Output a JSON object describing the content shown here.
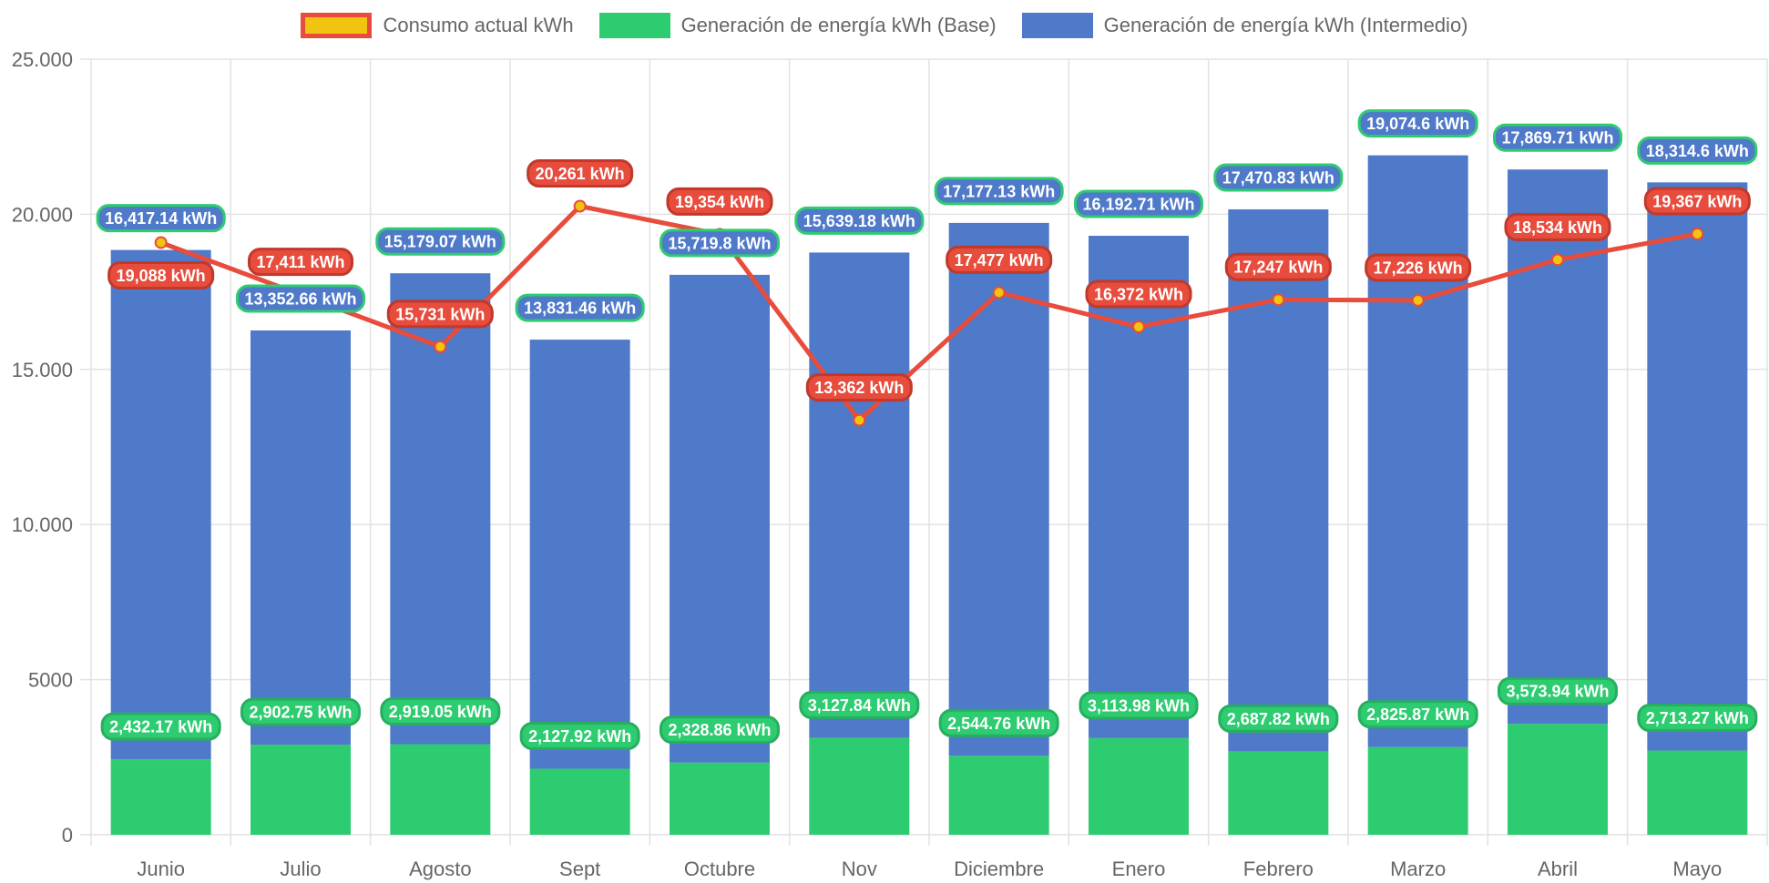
{
  "chart_data": {
    "type": "bar",
    "stacked": true,
    "categories": [
      "Junio",
      "Julio",
      "Agosto",
      "Sept",
      "Octubre",
      "Nov",
      "Diciembre",
      "Enero",
      "Febrero",
      "Marzo",
      "Abril",
      "Mayo"
    ],
    "series": [
      {
        "name": "Consumo actual kWh",
        "type": "line",
        "color": "#e74c3c",
        "point_color": "#f1c40f",
        "values": [
          19088,
          17411,
          15731,
          20261,
          19354,
          13362,
          17477,
          16372,
          17247,
          17226,
          18534,
          19367
        ],
        "labels": [
          "19,088 kWh",
          "17,411 kWh",
          "15,731 kWh",
          "20,261 kWh",
          "19,354 kWh",
          "13,362 kWh",
          "17,477 kWh",
          "16,372 kWh",
          "17,247 kWh",
          "17,226 kWh",
          "18,534 kWh",
          "19,367 kWh"
        ]
      },
      {
        "name": "Generación de energía kWh (Base)",
        "type": "bar",
        "color": "#2ecc71",
        "values": [
          2432.17,
          2902.75,
          2919.05,
          2127.92,
          2328.86,
          3127.84,
          2544.76,
          3113.98,
          2687.82,
          2825.87,
          3573.94,
          2713.27
        ],
        "labels": [
          "2,432.17 kWh",
          "2,902.75 kWh",
          "2,919.05 kWh",
          "2,127.92 kWh",
          "2,328.86 kWh",
          "3,127.84 kWh",
          "2,544.76 kWh",
          "3,113.98 kWh",
          "2,687.82 kWh",
          "2,825.87 kWh",
          "3,573.94 kWh",
          "2,713.27 kWh"
        ]
      },
      {
        "name": "Generación de energía kWh (Intermedio)",
        "type": "bar",
        "color": "#4f79c9",
        "values": [
          16417.14,
          13352.66,
          15179.07,
          13831.46,
          15719.8,
          15639.18,
          17177.13,
          16192.71,
          17470.83,
          19074.6,
          17869.71,
          18314.6
        ],
        "labels": [
          "16,417.14 kWh",
          "13,352.66 kWh",
          "15,179.07 kWh",
          "13,831.46 kWh",
          "15,719.8 kWh",
          "15,639.18 kWh",
          "17,177.13 kWh",
          "16,192.71 kWh",
          "17,470.83 kWh",
          "19,074.6 kWh",
          "17,869.71 kWh",
          "18,314.6 kWh"
        ]
      }
    ],
    "ylim": [
      0,
      25000
    ],
    "yticks": [
      0,
      5000,
      10000,
      15000,
      20000,
      25000
    ],
    "ytick_labels": [
      "0",
      "5000",
      "10.000",
      "15.000",
      "20.000",
      "25.000"
    ],
    "xlabel": "",
    "ylabel": "",
    "title": "",
    "grid": true,
    "legend_position": "top"
  }
}
